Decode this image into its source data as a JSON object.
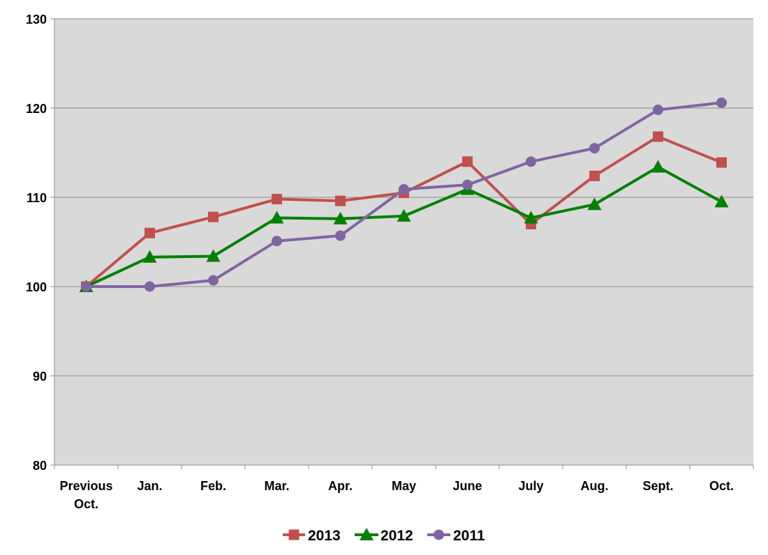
{
  "chart_data": {
    "type": "line",
    "title": "",
    "xlabel": "",
    "ylabel": "",
    "categories": [
      [
        "Previous",
        "Oct."
      ],
      [
        "Jan."
      ],
      [
        "Feb."
      ],
      [
        "Mar."
      ],
      [
        "Apr."
      ],
      [
        "May"
      ],
      [
        "June"
      ],
      [
        "July"
      ],
      [
        "Aug."
      ],
      [
        "Sept."
      ],
      [
        "Oct."
      ]
    ],
    "ylim": [
      80,
      130
    ],
    "yticks": [
      "80",
      "90",
      "100",
      "110",
      "120",
      "130"
    ],
    "grid": true,
    "legend": "bottom",
    "background": "#d9d9d9",
    "series": [
      {
        "name": "2013",
        "color": "#c0504d",
        "marker": "square",
        "values": [
          100,
          106,
          107.8,
          109.8,
          109.6,
          110.5,
          114,
          107,
          112.4,
          116.8,
          113.9
        ]
      },
      {
        "name": "2012",
        "color": "#008000",
        "marker": "triangle",
        "values": [
          100,
          103.3,
          103.4,
          107.7,
          107.6,
          107.9,
          110.9,
          107.7,
          109.2,
          113.4,
          109.5
        ]
      },
      {
        "name": "2011",
        "color": "#8064a2",
        "marker": "circle",
        "values": [
          100,
          100,
          100.7,
          105.1,
          105.7,
          110.9,
          111.4,
          114,
          115.5,
          119.8,
          120.6
        ]
      }
    ]
  }
}
